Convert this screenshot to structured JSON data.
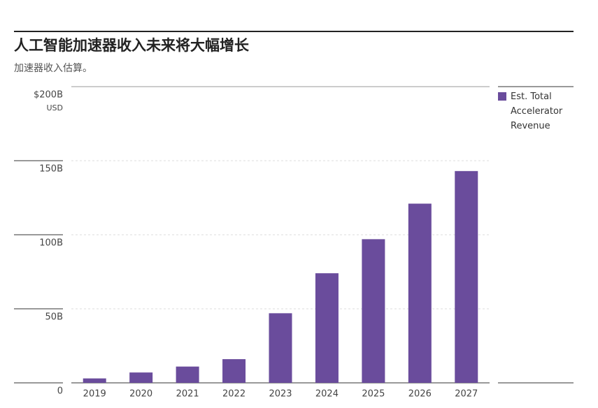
{
  "chart_data": {
    "type": "bar",
    "title": "人工智能加速器收入未来将大幅增长",
    "subtitle": "加速器收入估算。",
    "categories": [
      "2019",
      "2020",
      "2021",
      "2022",
      "2023",
      "2024",
      "2025",
      "2026",
      "2027"
    ],
    "series": [
      {
        "name": "Est. Total Accelerator Revenue",
        "color": "#6a4c9c",
        "values": [
          3,
          7,
          11,
          16,
          47,
          74,
          97,
          121,
          143
        ]
      }
    ],
    "ylim": [
      0,
      200
    ],
    "yticks": [
      {
        "value": 0,
        "label": "0"
      },
      {
        "value": 50,
        "label": "50B"
      },
      {
        "value": 100,
        "label": "100B"
      },
      {
        "value": 150,
        "label": "150B"
      },
      {
        "value": 200,
        "label": "$200B"
      }
    ],
    "y_unit": "USD",
    "grid": true,
    "legend": "right"
  }
}
